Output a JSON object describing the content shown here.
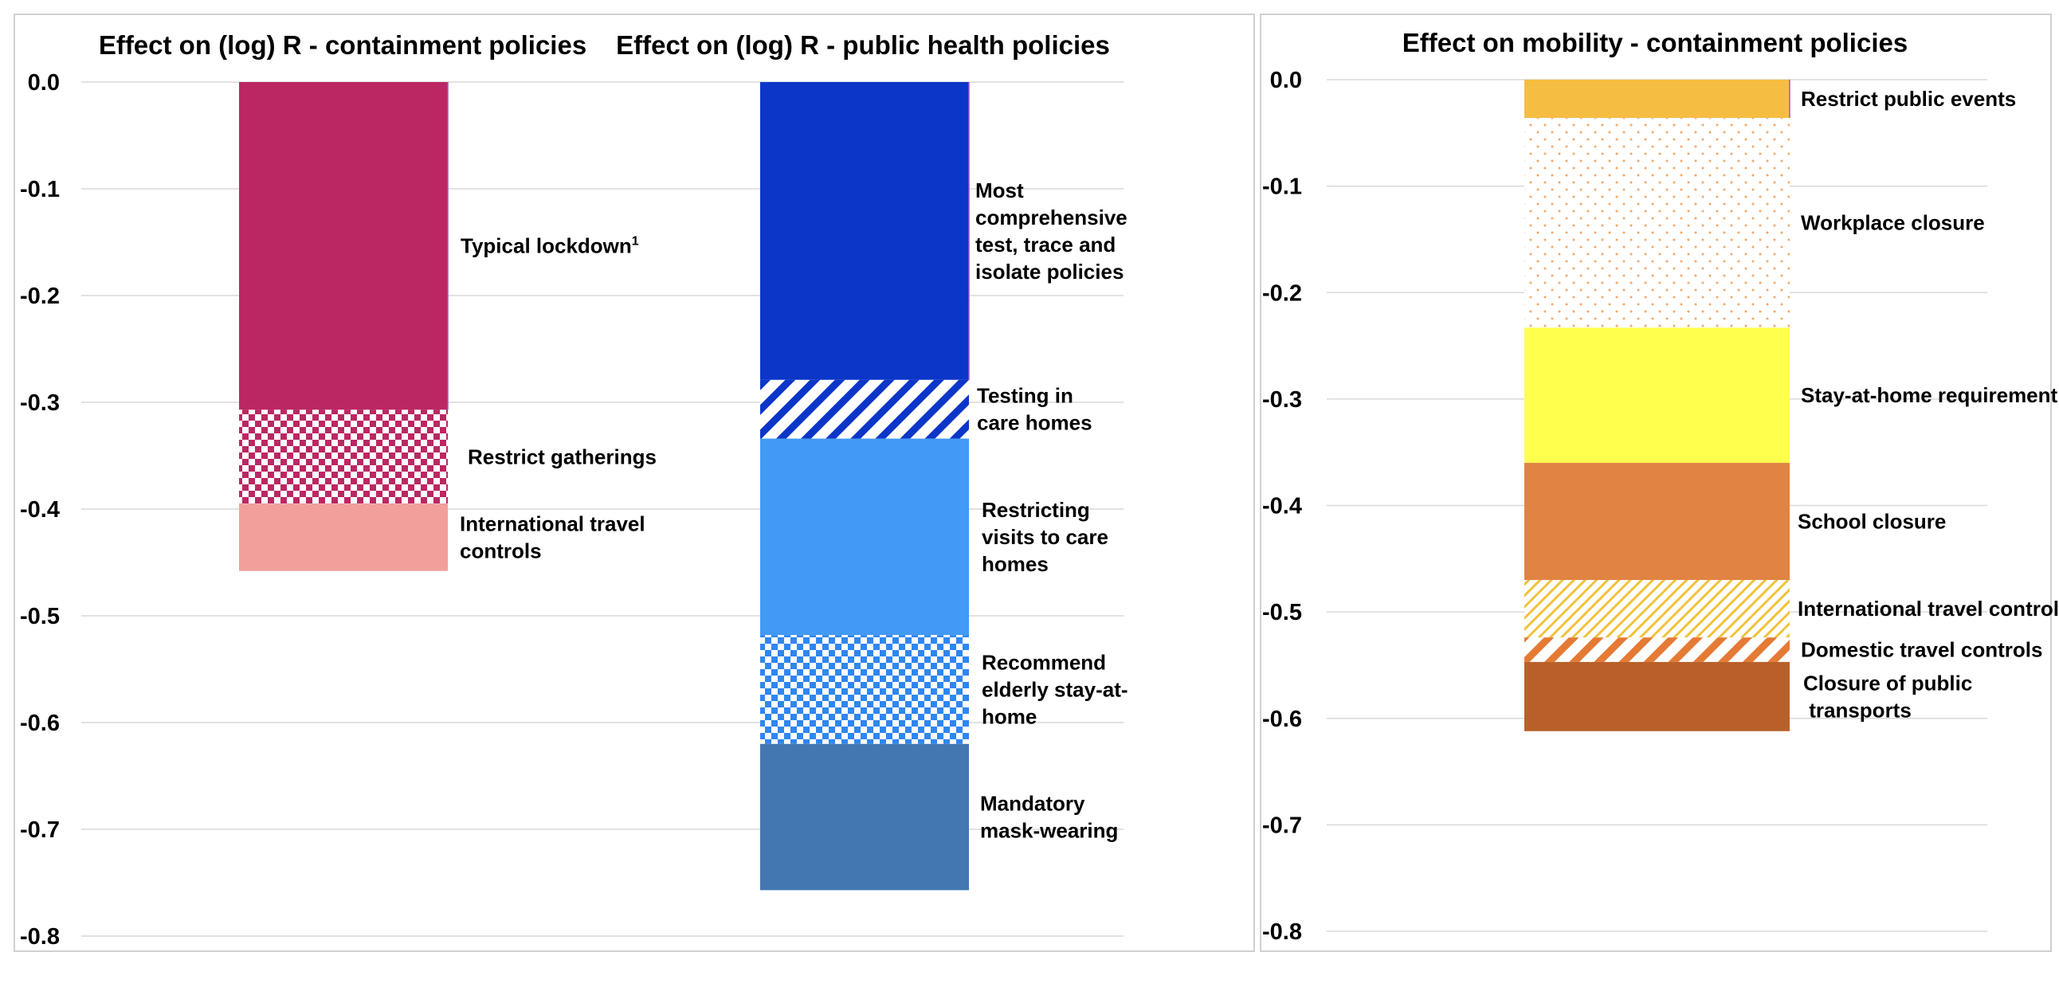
{
  "colors": {
    "typical_lockdown": "#bb2763",
    "restrict_gatherings": "#bb2763",
    "intl_travel_r": "#f29f9c",
    "test_trace": "#0b36c8",
    "testing_care": "#0b36c8",
    "visits_care": "#4299f6",
    "elderly": "#2f86f0",
    "masks": "#4277b2",
    "public_events": "#f6bd43",
    "workplace": "#f2a96b",
    "stay_home": "#ffff4e",
    "school": "#e18343",
    "intl_travel_m": "#f1c23a",
    "domestic_travel": "#e57a35",
    "public_transport": "#b9602a"
  },
  "chart_data": [
    {
      "type": "bar",
      "stacked": true,
      "title": "Effect on (log) R - containment policies",
      "ylim": [
        -0.8,
        0.0
      ],
      "yticks": [
        "0.0",
        "-0.1",
        "-0.2",
        "-0.3",
        "-0.4",
        "-0.5",
        "-0.6",
        "-0.7",
        "-0.8"
      ],
      "grid": true,
      "series": [
        {
          "name": "Typical lockdown",
          "superscript": "1",
          "start": 0.0,
          "end": -0.307,
          "pattern": "solid",
          "color_key": "typical_lockdown"
        },
        {
          "name": "Restrict gatherings",
          "start": -0.307,
          "end": -0.395,
          "pattern": "checker",
          "color_key": "restrict_gatherings"
        },
        {
          "name": "International travel controls",
          "label_lines": [
            "International travel",
            "controls"
          ],
          "start": -0.395,
          "end": -0.458,
          "pattern": "solid",
          "color_key": "intl_travel_r"
        }
      ]
    },
    {
      "type": "bar",
      "stacked": true,
      "title": "Effect on (log) R - public health policies",
      "ylim": [
        -0.8,
        0.0
      ],
      "grid": true,
      "series": [
        {
          "name": "Most comprehensive test, trace and isolate policies",
          "label_lines": [
            "Most",
            "comprehensive",
            "test, trace and",
            "isolate policies"
          ],
          "start": 0.0,
          "end": -0.279,
          "pattern": "solid",
          "color_key": "test_trace"
        },
        {
          "name": "Testing in care homes",
          "label_lines": [
            "Testing in",
            "care  homes"
          ],
          "start": -0.279,
          "end": -0.334,
          "pattern": "diagonal",
          "color_key": "testing_care"
        },
        {
          "name": "Restricting visits to care homes",
          "label_lines": [
            "Restricting",
            "visits to care",
            "homes"
          ],
          "start": -0.334,
          "end": -0.518,
          "pattern": "solid",
          "color_key": "visits_care"
        },
        {
          "name": "Recommend elderly stay-at-home",
          "label_lines": [
            "Recommend",
            "elderly stay-at-",
            "home"
          ],
          "start": -0.518,
          "end": -0.62,
          "pattern": "checker",
          "color_key": "elderly"
        },
        {
          "name": "Mandatory mask-wearing",
          "label_lines": [
            "Mandatory",
            "mask-wearing"
          ],
          "start": -0.62,
          "end": -0.757,
          "pattern": "solid",
          "color_key": "masks"
        }
      ]
    },
    {
      "type": "bar",
      "stacked": true,
      "title": "Effect on mobility - containment policies",
      "ylim": [
        -0.8,
        0.0
      ],
      "yticks": [
        "0.0",
        "-0.1",
        "-0.2",
        "-0.3",
        "-0.4",
        "-0.5",
        "-0.6",
        "-0.7",
        "-0.8"
      ],
      "grid": true,
      "series": [
        {
          "name": "Restrict public events",
          "start": 0.0,
          "end": -0.036,
          "pattern": "solid",
          "color_key": "public_events"
        },
        {
          "name": "Workplace closure",
          "start": -0.036,
          "end": -0.233,
          "pattern": "dots",
          "color_key": "workplace"
        },
        {
          "name": "Stay-at-home requirement",
          "start": -0.233,
          "end": -0.36,
          "pattern": "solid",
          "color_key": "stay_home"
        },
        {
          "name": "School closure",
          "start": -0.36,
          "end": -0.47,
          "pattern": "solid",
          "color_key": "school"
        },
        {
          "name": "International travel controls",
          "start": -0.47,
          "end": -0.524,
          "pattern": "thin-diagonal",
          "color_key": "intl_travel_m"
        },
        {
          "name": "Domestic travel controls",
          "start": -0.524,
          "end": -0.547,
          "pattern": "diagonal",
          "color_key": "domestic_travel"
        },
        {
          "name": "Closure of public transports",
          "label_lines": [
            "Closure of public",
            " transports"
          ],
          "start": -0.547,
          "end": -0.612,
          "pattern": "solid",
          "color_key": "public_transport"
        }
      ]
    }
  ]
}
